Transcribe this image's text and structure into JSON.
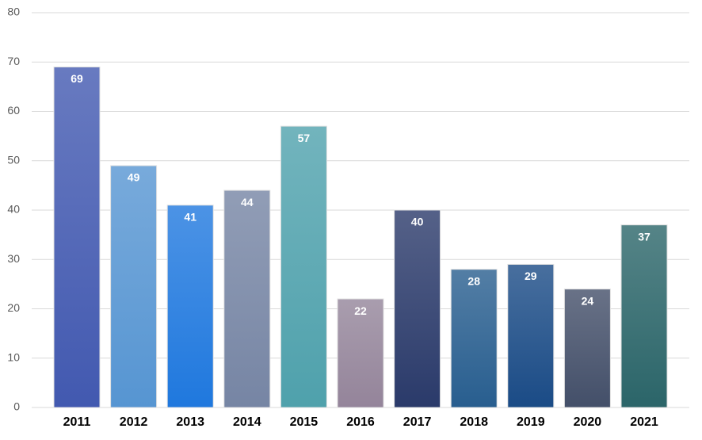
{
  "chart_data": {
    "type": "bar",
    "categories": [
      "2011",
      "2012",
      "2013",
      "2014",
      "2015",
      "2016",
      "2017",
      "2018",
      "2019",
      "2020",
      "2021"
    ],
    "values": [
      69,
      49,
      41,
      44,
      57,
      22,
      40,
      28,
      29,
      24,
      37
    ],
    "colors": [
      "#4259b0",
      "#5695d2",
      "#1f78de",
      "#7685a4",
      "#4fa1ac",
      "#94849a",
      "#2a3a6a",
      "#285e8f",
      "#1a4b86",
      "#434f69",
      "#2b6569"
    ],
    "ylim": [
      0,
      80
    ],
    "yticks": [
      0,
      10,
      20,
      30,
      40,
      50,
      60,
      70,
      80
    ],
    "grid": true
  }
}
